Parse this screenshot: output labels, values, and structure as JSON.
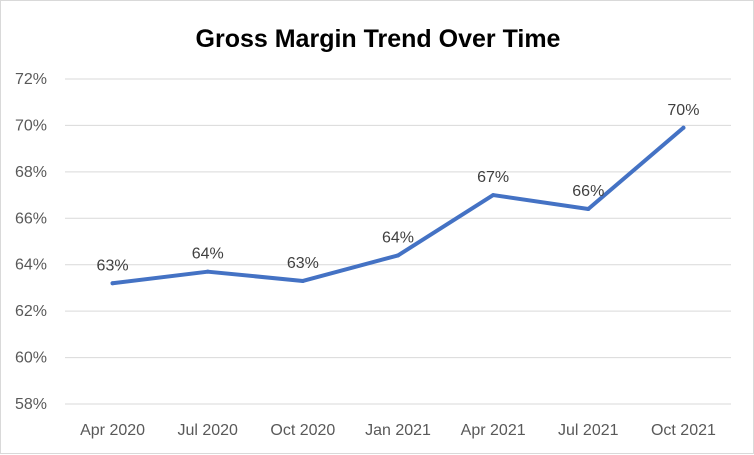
{
  "chart_data": {
    "type": "line",
    "title": "Gross Margin Trend Over Time",
    "xlabel": "",
    "ylabel": "",
    "categories": [
      "Apr 2020",
      "Jul 2020",
      "Oct 2020",
      "Jan 2021",
      "Apr 2021",
      "Jul 2021",
      "Oct 2021"
    ],
    "series": [
      {
        "values": [
          63.2,
          63.7,
          63.3,
          64.4,
          67.0,
          66.4,
          69.9
        ],
        "data_labels": [
          "63%",
          "64%",
          "63%",
          "64%",
          "67%",
          "66%",
          "70%"
        ],
        "color": "#4472C4"
      }
    ],
    "ylim": [
      58,
      72
    ],
    "yticks": [
      58,
      60,
      62,
      64,
      66,
      68,
      70,
      72
    ],
    "ytick_labels": [
      "58%",
      "60%",
      "62%",
      "64%",
      "66%",
      "68%",
      "70%",
      "72%"
    ],
    "grid": true,
    "legend": "none",
    "colors": {
      "gridline": "#d9d9d9",
      "line": "#4472C4"
    }
  }
}
